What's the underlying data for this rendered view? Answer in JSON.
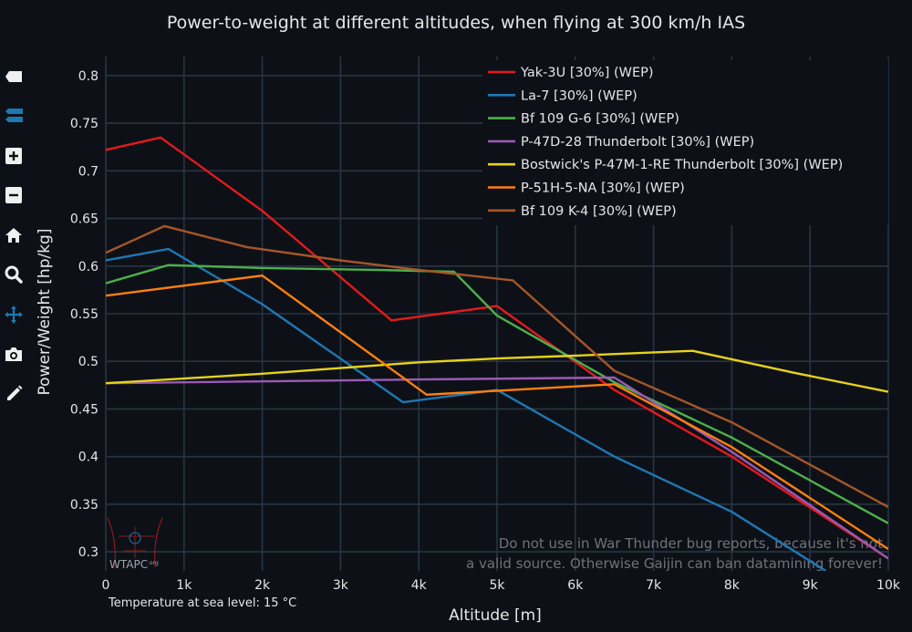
{
  "toolbar": [
    {
      "name": "save-icon",
      "color": "#f0f0f0"
    },
    {
      "name": "compare-icon",
      "color": "#1f77b4"
    },
    {
      "name": "zoom-in-icon",
      "color": "#f0f0f0"
    },
    {
      "name": "zoom-out-icon",
      "color": "#f0f0f0"
    },
    {
      "name": "home-icon",
      "color": "#f0f0f0"
    },
    {
      "name": "zoom-icon",
      "color": "#f0f0f0"
    },
    {
      "name": "pan-icon",
      "color": "#1f77b4"
    },
    {
      "name": "camera-icon",
      "color": "#f0f0f0"
    },
    {
      "name": "pencil-icon",
      "color": "#f0f0f0"
    }
  ],
  "watermark": {
    "logo_text": "WTAPC",
    "logo_sub": ".org",
    "line1": "Do not use in War Thunder bug reports, because it's not",
    "line2": "a valid source. Otherwise Gaijin can ban datamining forever!"
  },
  "footnote": "Temperature at sea level: 15 °C",
  "chart_data": {
    "type": "line",
    "title": "Power-to-weight at different altitudes, when flying at 300 km/h IAS",
    "xlabel": "Altitude [m]",
    "ylabel": "Power/Weight [hp/kg]",
    "xlim": [
      0,
      10000
    ],
    "ylim": [
      0.28,
      0.82
    ],
    "xticks": [
      0,
      1000,
      2000,
      3000,
      4000,
      5000,
      6000,
      7000,
      8000,
      9000,
      10000
    ],
    "xtick_labels": [
      "0",
      "1k",
      "2k",
      "3k",
      "4k",
      "5k",
      "6k",
      "7k",
      "8k",
      "9k",
      "10k"
    ],
    "yticks": [
      0.3,
      0.35,
      0.4,
      0.45,
      0.5,
      0.55,
      0.6,
      0.65,
      0.7,
      0.75,
      0.8
    ],
    "ytick_labels": [
      "0.3",
      "0.35",
      "0.4",
      "0.45",
      "0.5",
      "0.55",
      "0.6",
      "0.65",
      "0.7",
      "0.75",
      "0.8"
    ],
    "grid": true,
    "legend_position": "top-right",
    "series": [
      {
        "name": "Yak-3U [30%] (WEP)",
        "color": "#e41a1c",
        "x": [
          0,
          700,
          2000,
          3650,
          5000,
          6500,
          8000,
          10000
        ],
        "y": [
          0.722,
          0.735,
          0.658,
          0.543,
          0.558,
          0.47,
          0.4,
          0.293
        ]
      },
      {
        "name": "La-7 [30%] (WEP)",
        "color": "#1f77b4",
        "x": [
          0,
          800,
          2000,
          3800,
          5000,
          6500,
          8000,
          9200
        ],
        "y": [
          0.606,
          0.618,
          0.56,
          0.457,
          0.47,
          0.4,
          0.342,
          0.28
        ]
      },
      {
        "name": "Bf 109 G-6 [30%] (WEP)",
        "color": "#4daf4a",
        "x": [
          0,
          800,
          2000,
          3500,
          4450,
          5000,
          6500,
          8000,
          10000
        ],
        "y": [
          0.582,
          0.601,
          0.598,
          0.596,
          0.594,
          0.548,
          0.478,
          0.42,
          0.33
        ]
      },
      {
        "name": "P-47D-28 Thunderbolt [30%] (WEP)",
        "color": "#9b59b6",
        "x": [
          0,
          2000,
          4000,
          6500,
          8000,
          10000
        ],
        "y": [
          0.477,
          0.479,
          0.481,
          0.483,
          0.405,
          0.293
        ]
      },
      {
        "name": "Bostwick's P-47M-1-RE Thunderbolt [30%] (WEP)",
        "color": "#e6d219",
        "x": [
          0,
          2000,
          4000,
          5000,
          6000,
          7500,
          8800,
          10000
        ],
        "y": [
          0.477,
          0.487,
          0.499,
          0.503,
          0.506,
          0.511,
          0.488,
          0.468
        ]
      },
      {
        "name": "P-51H-5-NA [30%] (WEP)",
        "color": "#ff7f0e",
        "x": [
          0,
          2000,
          4100,
          6500,
          8000,
          10000
        ],
        "y": [
          0.569,
          0.59,
          0.465,
          0.476,
          0.41,
          0.303
        ]
      },
      {
        "name": "Bf 109 K-4 [30%] (WEP)",
        "color": "#a65628",
        "x": [
          0,
          750,
          1800,
          3000,
          4000,
          5200,
          6500,
          8000,
          10000
        ],
        "y": [
          0.614,
          0.642,
          0.62,
          0.606,
          0.596,
          0.585,
          0.49,
          0.436,
          0.347
        ]
      }
    ]
  }
}
